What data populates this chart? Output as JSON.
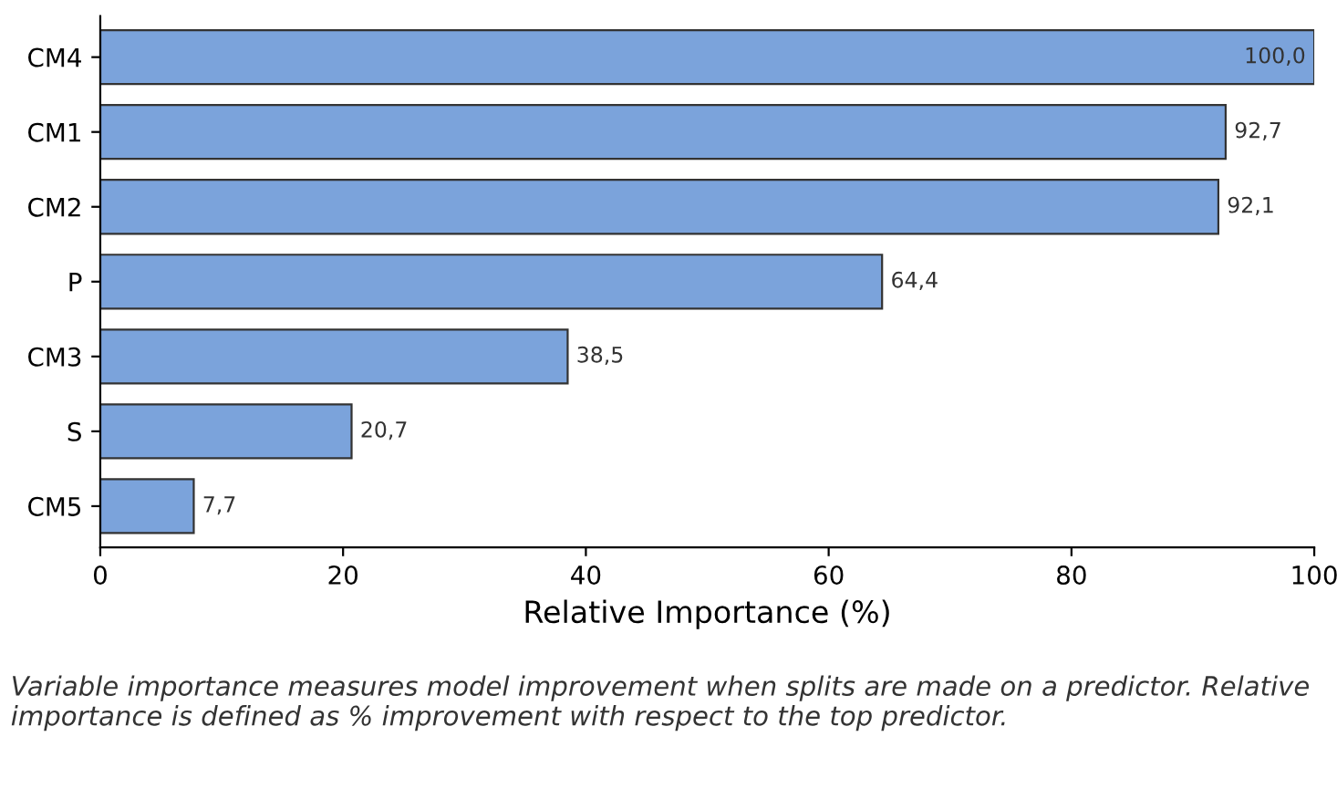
{
  "chart_data": {
    "type": "bar",
    "orientation": "horizontal",
    "categories": [
      "CM4",
      "CM1",
      "CM2",
      "P",
      "CM3",
      "S",
      "CM5"
    ],
    "values": [
      100.0,
      92.7,
      92.1,
      64.4,
      38.5,
      20.7,
      7.7
    ],
    "value_labels": [
      "100,0",
      "92,7",
      "92,1",
      "64,4",
      "38,5",
      "20,7",
      "7,7"
    ],
    "color": "#7ba3db",
    "xlabel": "Relative Importance (%)",
    "xlim": [
      0,
      100
    ],
    "xticks": [
      0,
      20,
      40,
      60,
      80,
      100
    ],
    "grid": false,
    "legend": false,
    "annotations": [
      "Variable importance measures model improvement when splits are made on a predictor. Relative importance is defined as % improvement with respect to the top predictor."
    ]
  }
}
